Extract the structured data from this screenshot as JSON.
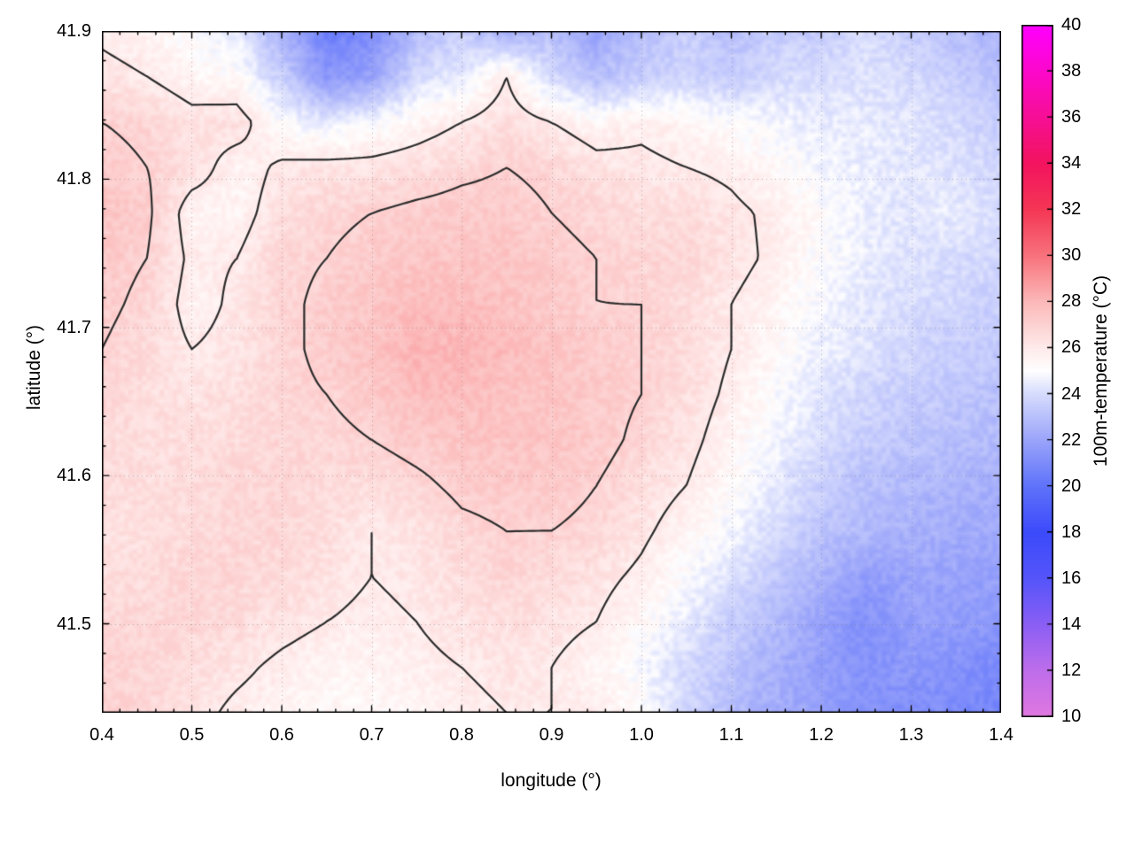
{
  "figure": {
    "background": "#ffffff",
    "contour_color": "#2b2b2b",
    "grid_color": "#9a9a9a",
    "tick_color": "#000000",
    "border_color": "#000000"
  },
  "chart_data": {
    "type": "heatmap",
    "title": "",
    "xlabel": "longitude (°)",
    "ylabel": "latitude (°)",
    "colorbar_label": "100m-temperature (°C)",
    "x_range": [
      0.4,
      1.4
    ],
    "y_range": [
      41.44,
      41.9
    ],
    "colorbar_range": [
      10,
      40
    ],
    "x_ticks": [
      0.4,
      0.5,
      0.6,
      0.7,
      0.8,
      0.9,
      1.0,
      1.1,
      1.2,
      1.3,
      1.4
    ],
    "x_tick_labels": [
      "0.4",
      "0.5",
      "0.6",
      "0.7",
      "0.8",
      "0.9",
      "1.0",
      "1.1",
      "1.2",
      "1.3",
      "1.4"
    ],
    "y_ticks": [
      41.5,
      41.6,
      41.7,
      41.8,
      41.9
    ],
    "y_tick_labels": [
      "41.5",
      "41.6",
      "41.7",
      "41.8",
      "41.9"
    ],
    "colorbar_ticks": [
      10,
      12,
      14,
      16,
      18,
      20,
      22,
      24,
      26,
      28,
      30,
      32,
      34,
      36,
      38,
      40
    ],
    "colorbar_tick_labels": [
      "10",
      "12",
      "14",
      "16",
      "18",
      "20",
      "22",
      "24",
      "26",
      "28",
      "30",
      "32",
      "34",
      "36",
      "38",
      "40"
    ],
    "contour_levels": [
      26,
      27
    ],
    "legend": "none",
    "grid_lines": "dotted-major",
    "palette": [
      [
        10,
        225,
        120,
        225
      ],
      [
        12,
        190,
        110,
        235
      ],
      [
        14,
        140,
        95,
        245
      ],
      [
        16,
        85,
        85,
        250
      ],
      [
        18,
        60,
        75,
        250
      ],
      [
        20,
        95,
        115,
        250
      ],
      [
        22,
        155,
        165,
        250
      ],
      [
        24,
        215,
        220,
        253
      ],
      [
        25,
        255,
        255,
        255
      ],
      [
        26,
        255,
        235,
        235
      ],
      [
        27,
        253,
        210,
        210
      ],
      [
        28,
        252,
        185,
        185
      ],
      [
        29,
        250,
        150,
        155
      ],
      [
        30,
        248,
        115,
        125
      ],
      [
        32,
        245,
        55,
        85
      ],
      [
        34,
        243,
        20,
        95
      ],
      [
        36,
        247,
        15,
        150
      ],
      [
        38,
        252,
        8,
        205
      ],
      [
        40,
        255,
        0,
        255
      ]
    ],
    "grid": {
      "lon": [
        0.4,
        0.45,
        0.5,
        0.55,
        0.6,
        0.65,
        0.7,
        0.75,
        0.8,
        0.85,
        0.9,
        0.95,
        1.0,
        1.05,
        1.1,
        1.15,
        1.2,
        1.25,
        1.3,
        1.35,
        1.4
      ],
      "lat": [
        41.9,
        41.869,
        41.839,
        41.808,
        41.777,
        41.747,
        41.716,
        41.685,
        41.655,
        41.624,
        41.593,
        41.563,
        41.532,
        41.501,
        41.471,
        41.44
      ],
      "temperature": [
        [
          25.8,
          25.5,
          25.0,
          24.5,
          22.5,
          20.5,
          21.0,
          23.0,
          23.5,
          22.5,
          23.0,
          22.0,
          23.0,
          23.5,
          23.0,
          23.5,
          23.5,
          24.0,
          23.5,
          23.0,
          22.5
        ],
        [
          26.3,
          26.0,
          25.5,
          25.2,
          23.5,
          21.5,
          22.0,
          24.0,
          24.5,
          26.0,
          24.0,
          23.0,
          23.5,
          23.8,
          23.5,
          24.0,
          24.0,
          24.2,
          24.0,
          23.5,
          23.0
        ],
        [
          27.0,
          26.8,
          26.3,
          26.5,
          25.0,
          24.5,
          25.0,
          25.5,
          26.0,
          26.5,
          26.0,
          25.5,
          25.8,
          25.5,
          25.0,
          24.8,
          24.5,
          24.5,
          24.3,
          24.0,
          23.5
        ],
        [
          27.3,
          27.0,
          26.5,
          25.5,
          26.2,
          26.3,
          26.3,
          26.5,
          26.8,
          27.0,
          26.8,
          26.3,
          26.2,
          26.0,
          25.8,
          25.3,
          24.8,
          24.5,
          24.3,
          24.2,
          23.8
        ],
        [
          27.5,
          27.2,
          25.5,
          25.6,
          26.5,
          26.8,
          27.0,
          27.2,
          27.3,
          27.3,
          27.0,
          26.8,
          26.5,
          26.6,
          26.2,
          25.8,
          25.2,
          24.6,
          24.3,
          24.5,
          24.0
        ],
        [
          27.3,
          27.0,
          25.8,
          26.0,
          26.8,
          27.0,
          27.3,
          27.5,
          27.5,
          27.5,
          27.2,
          27.0,
          26.8,
          26.8,
          26.3,
          25.8,
          25.0,
          24.5,
          24.2,
          24.0,
          23.8
        ],
        [
          27.2,
          26.8,
          25.6,
          26.2,
          26.8,
          27.2,
          27.5,
          27.8,
          27.8,
          27.6,
          27.3,
          27.0,
          27.0,
          26.5,
          26.0,
          25.5,
          24.8,
          24.3,
          24.0,
          23.8,
          23.5
        ],
        [
          27.0,
          26.6,
          26.0,
          26.3,
          26.8,
          27.2,
          27.6,
          28.0,
          28.0,
          27.8,
          27.5,
          27.2,
          27.0,
          26.6,
          26.0,
          25.3,
          24.6,
          24.2,
          23.8,
          23.5,
          23.3
        ],
        [
          26.8,
          26.5,
          26.3,
          26.5,
          26.8,
          27.0,
          27.3,
          27.8,
          27.8,
          27.6,
          27.5,
          27.3,
          27.0,
          26.5,
          25.8,
          25.0,
          24.3,
          23.8,
          23.5,
          23.3,
          23.0
        ],
        [
          26.6,
          26.5,
          26.5,
          26.6,
          26.8,
          26.8,
          27.0,
          27.3,
          27.5,
          27.5,
          27.5,
          27.3,
          26.8,
          26.3,
          25.5,
          24.8,
          24.0,
          23.5,
          23.2,
          23.0,
          22.8
        ],
        [
          26.5,
          26.5,
          26.6,
          26.8,
          26.8,
          26.6,
          26.5,
          26.8,
          27.2,
          27.3,
          27.3,
          27.0,
          26.5,
          26.0,
          25.2,
          24.4,
          23.6,
          23.0,
          22.8,
          22.6,
          22.4
        ],
        [
          26.3,
          26.5,
          26.6,
          26.8,
          26.8,
          26.5,
          26.0,
          26.3,
          26.8,
          27.0,
          27.0,
          26.8,
          26.2,
          25.5,
          24.8,
          24.0,
          23.2,
          22.8,
          22.5,
          22.3,
          22.2
        ],
        [
          26.5,
          26.6,
          26.8,
          26.8,
          26.6,
          26.3,
          26.0,
          26.2,
          26.5,
          26.8,
          26.6,
          26.3,
          25.8,
          25.0,
          24.2,
          23.4,
          22.6,
          21.8,
          22.0,
          22.0,
          21.8
        ],
        [
          26.8,
          26.8,
          26.8,
          26.6,
          26.3,
          26.0,
          25.8,
          26.0,
          26.3,
          26.5,
          26.3,
          26.0,
          25.3,
          24.5,
          23.6,
          22.8,
          22.0,
          21.2,
          21.8,
          21.8,
          21.5
        ],
        [
          27.0,
          26.8,
          26.5,
          26.2,
          25.8,
          25.5,
          25.5,
          25.8,
          26.0,
          26.2,
          26.0,
          25.5,
          24.8,
          24.0,
          23.2,
          22.4,
          21.8,
          21.3,
          21.5,
          21.3,
          21.0
        ],
        [
          27.0,
          26.8,
          26.3,
          25.8,
          25.5,
          25.3,
          25.3,
          25.5,
          25.8,
          26.0,
          26.0,
          25.8,
          25.2,
          23.8,
          23.0,
          22.3,
          21.8,
          21.3,
          21.2,
          21.0,
          20.8
        ]
      ]
    }
  }
}
